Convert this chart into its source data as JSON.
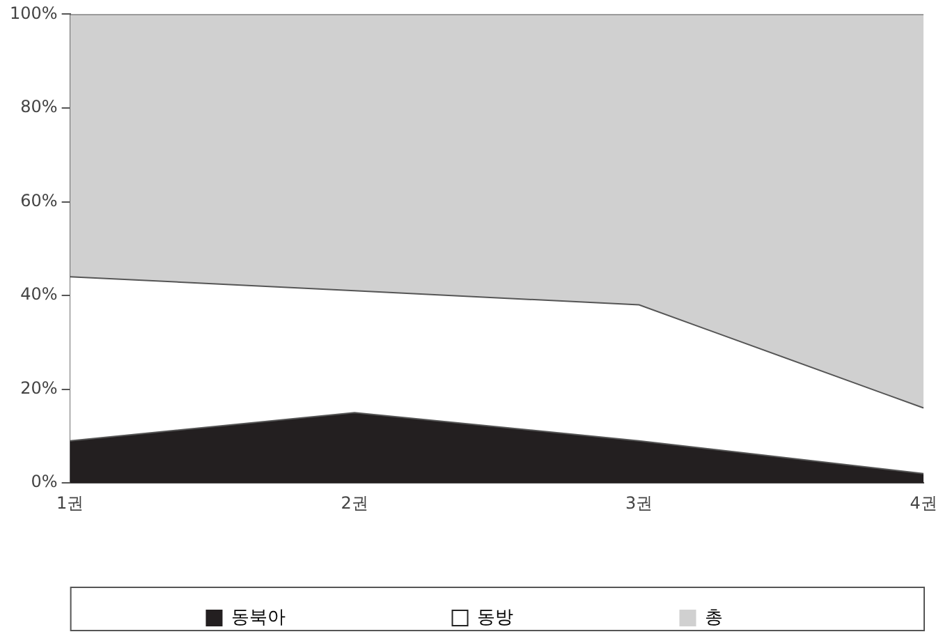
{
  "chart_data": {
    "type": "area",
    "stacked": true,
    "categories": [
      "1권",
      "2권",
      "3권",
      "4권"
    ],
    "series": [
      {
        "name": "동북아",
        "color": "#231f20",
        "values": [
          9,
          15,
          9,
          2
        ]
      },
      {
        "name": "동방",
        "color": "#ffffff",
        "values": [
          35,
          26,
          29,
          14
        ]
      },
      {
        "name": "총",
        "color": "#d0d0d0",
        "values": [
          56,
          59,
          62,
          84
        ]
      }
    ],
    "ylim": [
      0,
      100
    ],
    "yticks": [
      {
        "value": 0,
        "label": "0%"
      },
      {
        "value": 20,
        "label": "20%"
      },
      {
        "value": 40,
        "label": "40%"
      },
      {
        "value": 60,
        "label": "60%"
      },
      {
        "value": 80,
        "label": "80%"
      },
      {
        "value": 100,
        "label": "100%"
      }
    ],
    "grid": false,
    "legend": "bottom"
  }
}
